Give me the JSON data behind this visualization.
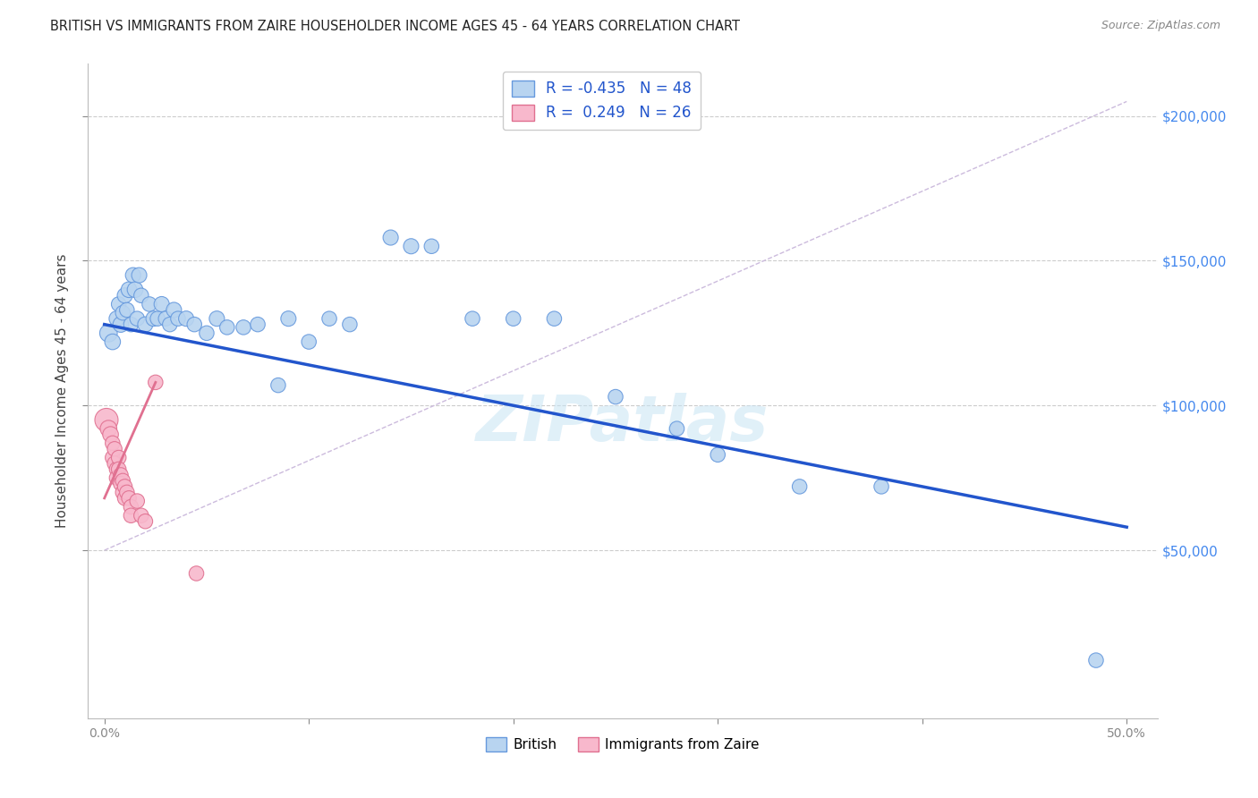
{
  "title": "BRITISH VS IMMIGRANTS FROM ZAIRE HOUSEHOLDER INCOME AGES 45 - 64 YEARS CORRELATION CHART",
  "source": "Source: ZipAtlas.com",
  "ylabel": "Householder Income Ages 45 - 64 years",
  "xlim": [
    -0.008,
    0.515
  ],
  "ylim": [
    -8000,
    218000
  ],
  "watermark": "ZIPatlas",
  "legend_british_R": "-0.435",
  "legend_british_N": "48",
  "legend_zaire_R": "0.249",
  "legend_zaire_N": "26",
  "british_color": "#b8d4f0",
  "british_edge_color": "#6699dd",
  "british_line_color": "#2255cc",
  "zaire_color": "#f8b8cc",
  "zaire_edge_color": "#e07090",
  "zaire_line_color": "#e07090",
  "zaire_dash_color": "#e8aabb",
  "ref_dash_color": "#ccbbdd",
  "british_points": [
    [
      0.002,
      125000,
      200
    ],
    [
      0.004,
      122000,
      160
    ],
    [
      0.006,
      130000,
      150
    ],
    [
      0.007,
      135000,
      140
    ],
    [
      0.008,
      128000,
      160
    ],
    [
      0.009,
      132000,
      140
    ],
    [
      0.01,
      138000,
      150
    ],
    [
      0.011,
      133000,
      140
    ],
    [
      0.012,
      140000,
      160
    ],
    [
      0.013,
      128000,
      140
    ],
    [
      0.014,
      145000,
      150
    ],
    [
      0.015,
      140000,
      160
    ],
    [
      0.016,
      130000,
      140
    ],
    [
      0.017,
      145000,
      150
    ],
    [
      0.018,
      138000,
      140
    ],
    [
      0.02,
      128000,
      150
    ],
    [
      0.022,
      135000,
      140
    ],
    [
      0.024,
      130000,
      150
    ],
    [
      0.026,
      130000,
      140
    ],
    [
      0.028,
      135000,
      150
    ],
    [
      0.03,
      130000,
      140
    ],
    [
      0.032,
      128000,
      140
    ],
    [
      0.034,
      133000,
      150
    ],
    [
      0.036,
      130000,
      140
    ],
    [
      0.04,
      130000,
      150
    ],
    [
      0.044,
      128000,
      140
    ],
    [
      0.05,
      125000,
      140
    ],
    [
      0.055,
      130000,
      150
    ],
    [
      0.06,
      127000,
      140
    ],
    [
      0.068,
      127000,
      140
    ],
    [
      0.075,
      128000,
      140
    ],
    [
      0.085,
      107000,
      140
    ],
    [
      0.09,
      130000,
      150
    ],
    [
      0.1,
      122000,
      140
    ],
    [
      0.11,
      130000,
      140
    ],
    [
      0.12,
      128000,
      140
    ],
    [
      0.14,
      158000,
      150
    ],
    [
      0.15,
      155000,
      150
    ],
    [
      0.16,
      155000,
      140
    ],
    [
      0.18,
      130000,
      140
    ],
    [
      0.2,
      130000,
      140
    ],
    [
      0.22,
      130000,
      140
    ],
    [
      0.25,
      103000,
      140
    ],
    [
      0.28,
      92000,
      140
    ],
    [
      0.3,
      83000,
      140
    ],
    [
      0.34,
      72000,
      140
    ],
    [
      0.38,
      72000,
      140
    ],
    [
      0.485,
      12000,
      140
    ]
  ],
  "zaire_points": [
    [
      0.001,
      95000,
      350
    ],
    [
      0.002,
      92000,
      180
    ],
    [
      0.003,
      90000,
      160
    ],
    [
      0.004,
      87000,
      140
    ],
    [
      0.004,
      82000,
      140
    ],
    [
      0.005,
      85000,
      140
    ],
    [
      0.005,
      80000,
      140
    ],
    [
      0.006,
      78000,
      140
    ],
    [
      0.006,
      75000,
      140
    ],
    [
      0.007,
      82000,
      140
    ],
    [
      0.007,
      78000,
      140
    ],
    [
      0.008,
      76000,
      140
    ],
    [
      0.008,
      73000,
      140
    ],
    [
      0.009,
      74000,
      140
    ],
    [
      0.009,
      70000,
      140
    ],
    [
      0.01,
      72000,
      140
    ],
    [
      0.01,
      68000,
      140
    ],
    [
      0.011,
      70000,
      140
    ],
    [
      0.012,
      68000,
      140
    ],
    [
      0.013,
      65000,
      140
    ],
    [
      0.013,
      62000,
      140
    ],
    [
      0.016,
      67000,
      140
    ],
    [
      0.018,
      62000,
      140
    ],
    [
      0.02,
      60000,
      140
    ],
    [
      0.025,
      108000,
      140
    ],
    [
      0.045,
      42000,
      140
    ]
  ],
  "british_trend": [
    0.0,
    0.5,
    128000,
    58000
  ],
  "zaire_trend": [
    0.0,
    0.025,
    68000,
    108000
  ],
  "zaire_dash_trend": [
    0.0,
    0.5,
    50000,
    205000
  ]
}
